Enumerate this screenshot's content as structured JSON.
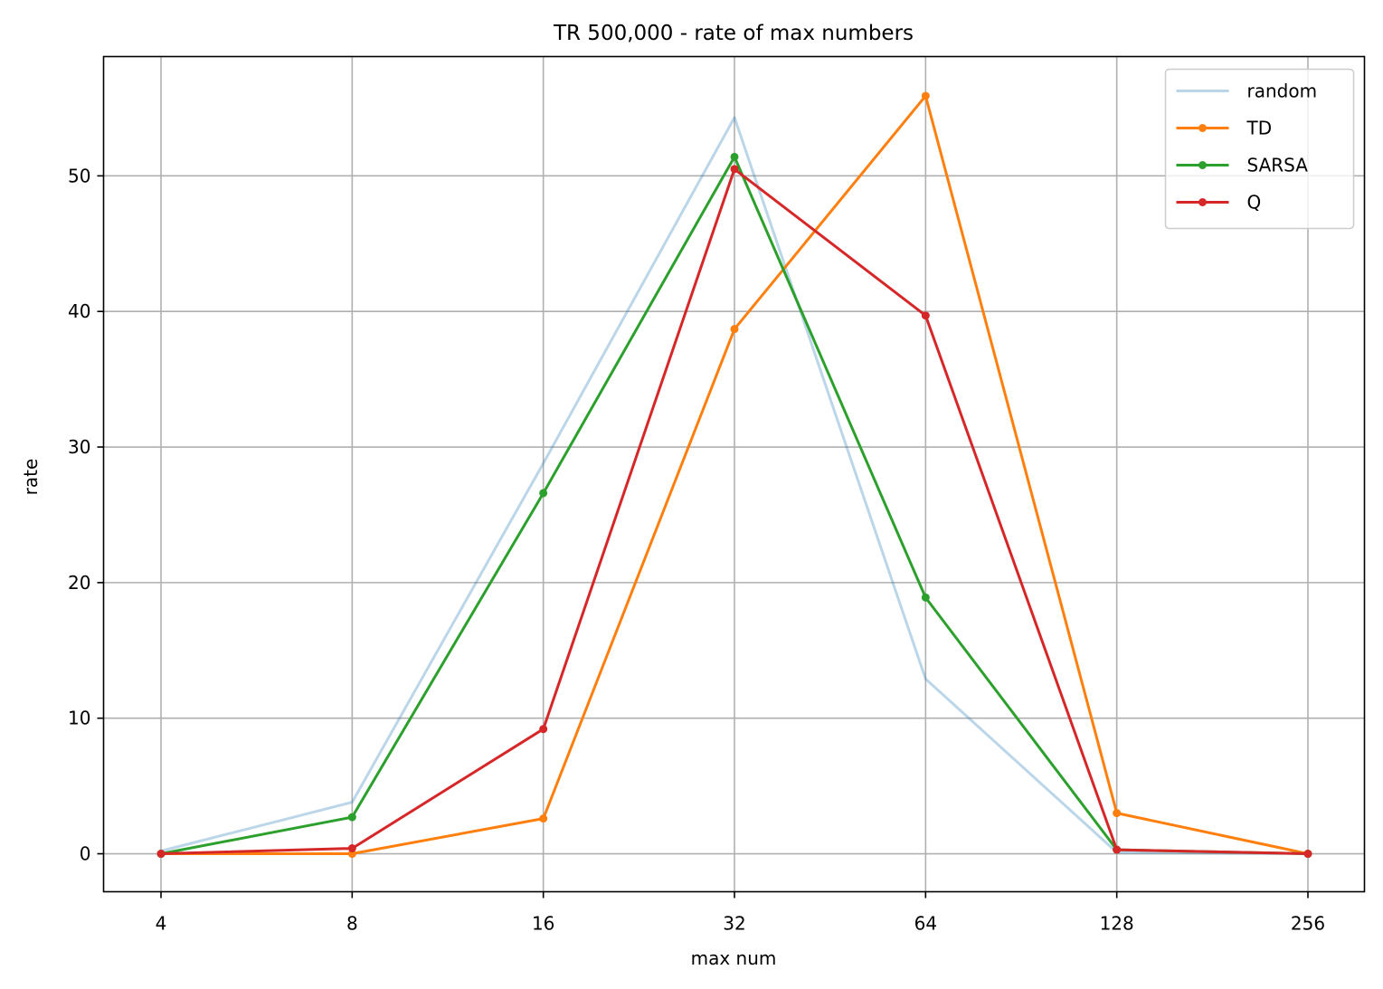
{
  "chart_data": {
    "type": "line",
    "title": "TR 500,000 - rate of max numbers",
    "xlabel": "max num",
    "ylabel": "rate",
    "categories": [
      "4",
      "8",
      "16",
      "32",
      "64",
      "128",
      "256"
    ],
    "yticks": [
      0,
      10,
      20,
      30,
      40,
      50
    ],
    "ylim": [
      -2.8,
      58.8
    ],
    "grid": true,
    "legend_position": "top-right",
    "series": [
      {
        "name": "random",
        "color": "#1f77b4",
        "opacity": 0.3,
        "markers": false,
        "values": [
          0.2,
          3.8,
          28.8,
          54.3,
          12.9,
          0.1,
          0.0
        ]
      },
      {
        "name": "TD",
        "color": "#ff7f0e",
        "opacity": 1,
        "markers": true,
        "values": [
          0.0,
          0.0,
          2.6,
          38.7,
          55.9,
          3.0,
          0.0
        ]
      },
      {
        "name": "SARSA",
        "color": "#2ca02c",
        "opacity": 1,
        "markers": true,
        "values": [
          0.0,
          2.7,
          26.6,
          51.4,
          18.9,
          0.3,
          0.0
        ]
      },
      {
        "name": "Q",
        "color": "#d62728",
        "opacity": 1,
        "markers": true,
        "values": [
          0.0,
          0.4,
          9.2,
          50.5,
          39.7,
          0.3,
          0.0
        ]
      }
    ]
  }
}
